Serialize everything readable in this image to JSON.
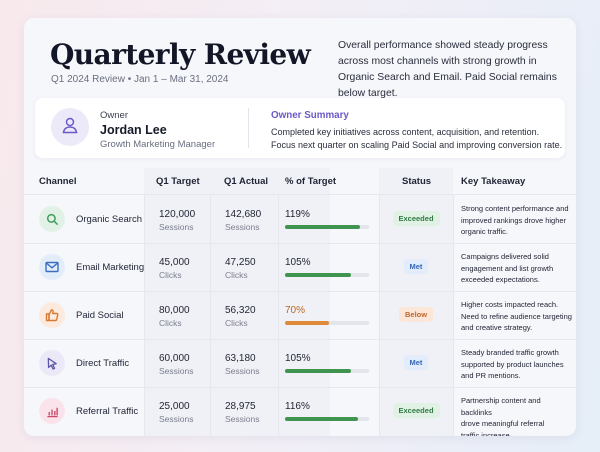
{
  "header": {
    "title": "Quarterly Review",
    "subtitle": "Q1 2024 Review • Jan 1 – Mar 31, 2024",
    "summary": "Overall performance showed steady progress across most channels with strong growth in Organic Search and Email. Paid Social remains below target."
  },
  "owner": {
    "label": "Owner",
    "name": "Jordan Lee",
    "role": "Growth Marketing Manager",
    "avatar_icon": "user-icon",
    "summary_title": "Owner Summary",
    "summary_line1": "Completed key initiatives across content, acquisition, and retention.",
    "summary_line2": "Focus next quarter on scaling Paid Social and improving conversion rate."
  },
  "table": {
    "headers": {
      "channel": "Channel",
      "target": "Q1 Target",
      "actual": "Q1 Actual",
      "pct": "% of Target",
      "status": "Status",
      "takeaway": "Key Takeaway"
    },
    "rows": [
      {
        "icon": "search-icon",
        "icon_color": "#3f9b5a",
        "icon_bg": "#e2f1e6",
        "channel": "Organic Search",
        "target": "120,000",
        "target_unit": "Sessions",
        "actual": "142,680",
        "actual_unit": "Sessions",
        "pct": "119%",
        "pct_value": 119,
        "bar_color": "#3f9550",
        "pct_color": "#1f2333",
        "status": "Exceeded",
        "status_color": "#2f7a45",
        "status_bg": "#e1f2e4",
        "takeaway_lines": [
          "Strong content performance and",
          "improved rankings drove higher",
          "organic traffic."
        ]
      },
      {
        "icon": "mail-icon",
        "icon_color": "#3a6fc4",
        "icon_bg": "#e3edf9",
        "channel": "Email Marketing",
        "target": "45,000",
        "target_unit": "Clicks",
        "actual": "47,250",
        "actual_unit": "Clicks",
        "pct": "105%",
        "pct_value": 105,
        "bar_color": "#3f9550",
        "pct_color": "#1f2333",
        "status": "Met",
        "status_color": "#3568b4",
        "status_bg": "#e2ecfa",
        "takeaway_lines": [
          "Campaigns delivered solid",
          "engagement and list growth",
          "exceeded expectations."
        ]
      },
      {
        "icon": "thumbs-up-icon",
        "icon_color": "#d47a35",
        "icon_bg": "#fbeadd",
        "channel": "Paid Social",
        "target": "80,000",
        "target_unit": "Clicks",
        "actual": "56,320",
        "actual_unit": "Clicks",
        "pct": "70%",
        "pct_value": 70,
        "bar_color": "#dd8a3a",
        "pct_color": "#b86820",
        "status": "Below",
        "status_color": "#c0652a",
        "status_bg": "#fbe6d8",
        "takeaway_lines": [
          "Higher costs impacted reach.",
          "Need to refine audience targeting",
          "and creative strategy."
        ]
      },
      {
        "icon": "cursor-icon",
        "icon_color": "#5f57a8",
        "icon_bg": "#ebe9f7",
        "channel": "Direct Traffic",
        "target": "60,000",
        "target_unit": "Sessions",
        "actual": "63,180",
        "actual_unit": "Sessions",
        "pct": "105%",
        "pct_value": 105,
        "bar_color": "#3f9550",
        "pct_color": "#1f2333",
        "status": "Met",
        "status_color": "#3568b4",
        "status_bg": "#e2ecfa",
        "takeaway_lines": [
          "Steady branded traffic growth",
          "supported by product launches",
          "and PR mentions."
        ]
      },
      {
        "icon": "bar-chart-icon",
        "icon_color": "#c94a6a",
        "icon_bg": "#fae3ea",
        "channel": "Referral Traffic",
        "target": "25,000",
        "target_unit": "Sessions",
        "actual": "28,975",
        "actual_unit": "Sessions",
        "pct": "116%",
        "pct_value": 116,
        "bar_color": "#3f9550",
        "pct_color": "#1f2333",
        "status": "Exceeded",
        "status_color": "#2f7a45",
        "status_bg": "#e1f2e4",
        "takeaway_lines": [
          "Partnership content and backlinks",
          "drove meaningful referral",
          "traffic increase."
        ]
      }
    ]
  }
}
